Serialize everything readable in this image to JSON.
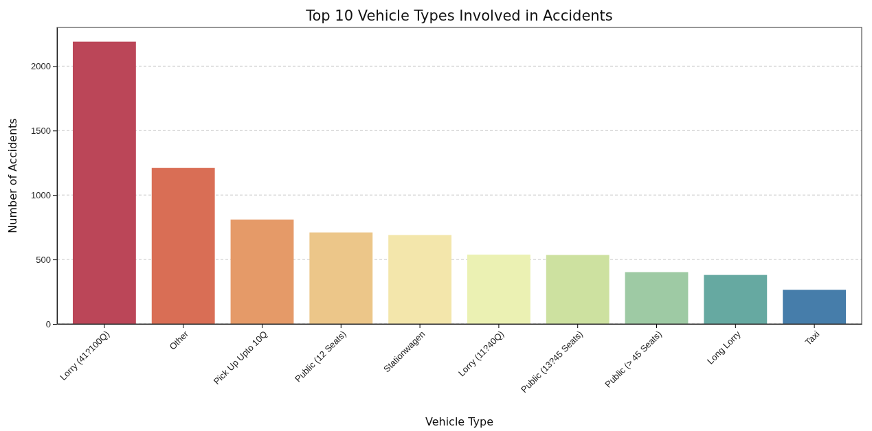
{
  "chart_data": {
    "type": "bar",
    "title": "Top 10 Vehicle Types Involved in Accidents",
    "xlabel": "Vehicle Type",
    "ylabel": "Number of Accidents",
    "categories": [
      "Lorry (41?100Q)",
      "Other",
      "Pick Up Upto 10Q",
      "Public (12 Seats)",
      "Stationwagen",
      "Lorry (11?40Q)",
      "Public (13?45 Seats)",
      "Public (> 45 Seats)",
      "Long Lorry",
      "Taxi"
    ],
    "values": [
      2190,
      1210,
      810,
      710,
      690,
      538,
      535,
      402,
      380,
      265
    ],
    "colors": [
      "#bb4658",
      "#d96e55",
      "#e59a68",
      "#ecc689",
      "#f3e6ab",
      "#ebf1b3",
      "#cde1a0",
      "#9ecaa4",
      "#66a9a1",
      "#467daa"
    ],
    "ylim": [
      0,
      2300
    ],
    "yticks": [
      0,
      500,
      1000,
      1500,
      2000
    ],
    "grid": "y"
  }
}
